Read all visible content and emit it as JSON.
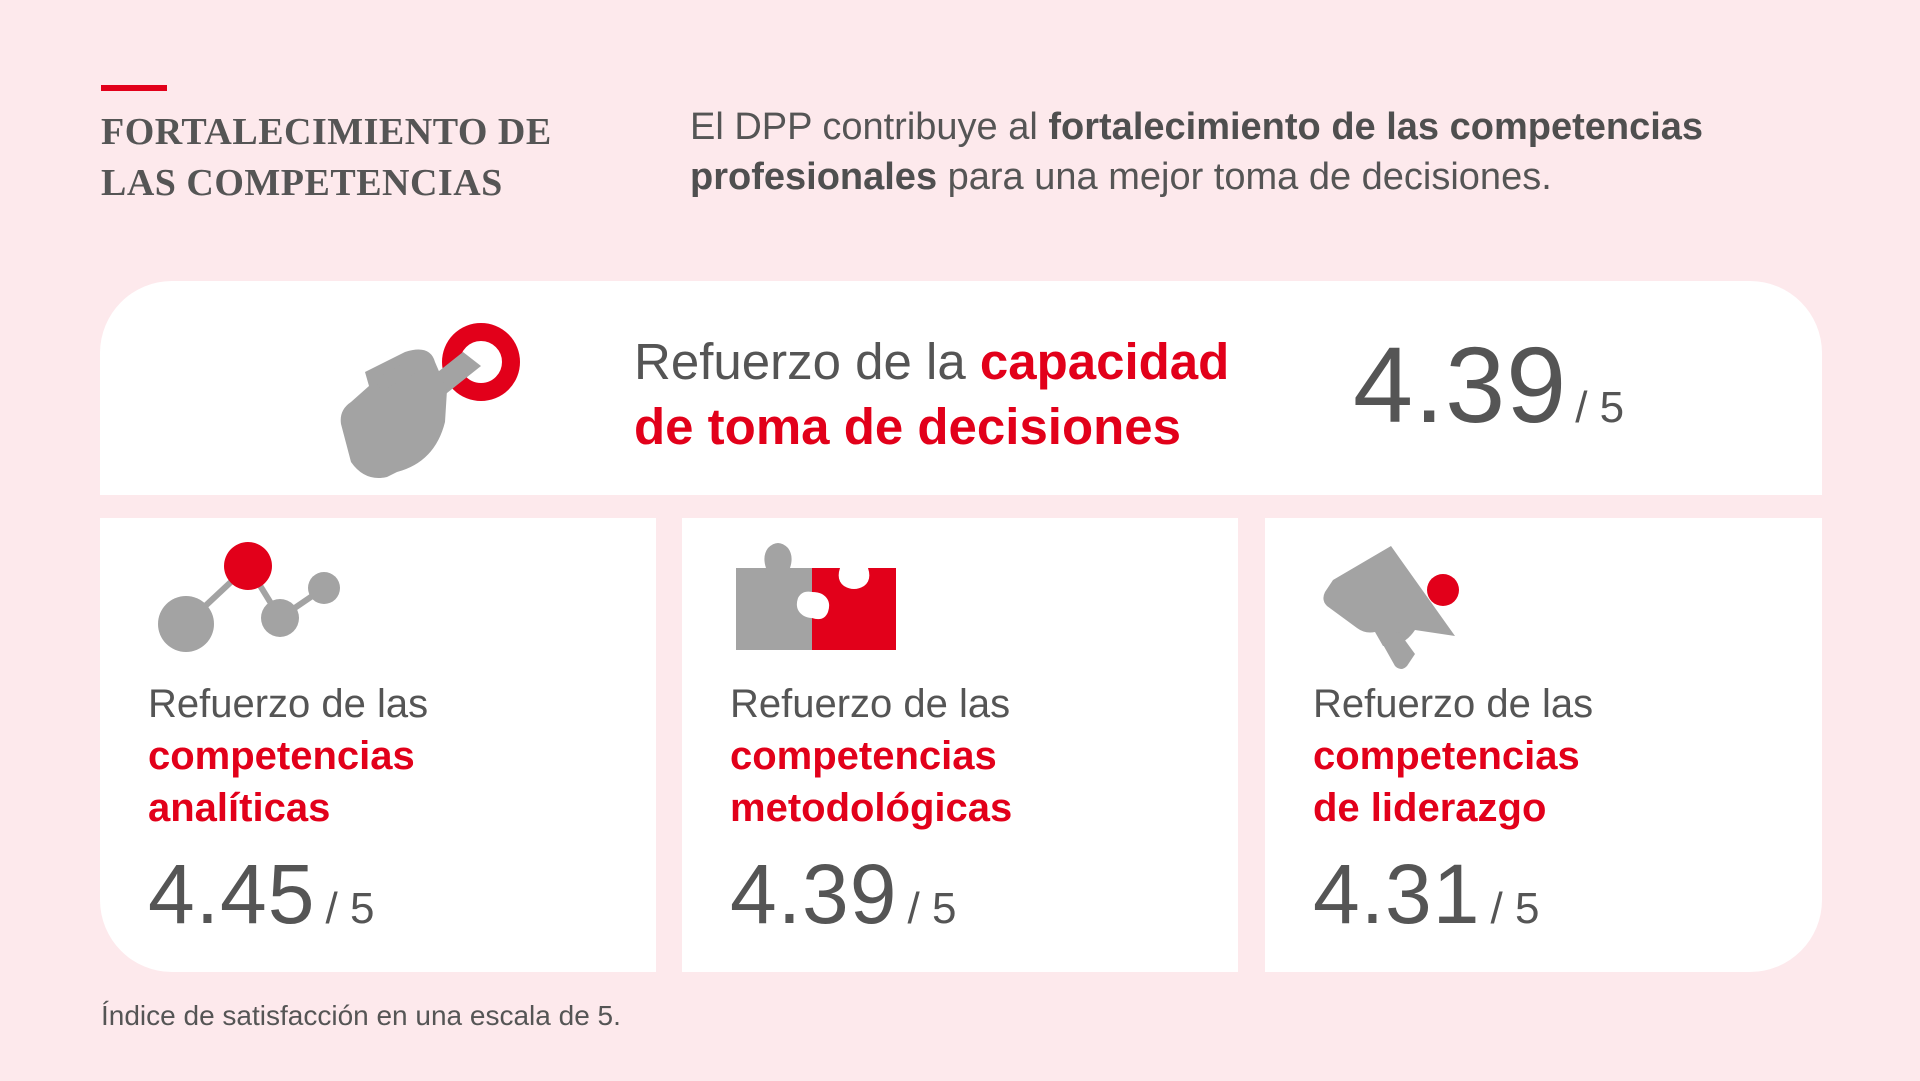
{
  "header": {
    "title_line1": "FORTALECIMIENTO DE",
    "title_line2": "LAS COMPETENCIAS",
    "intro_part1": "El DPP contribuye al ",
    "intro_bold": "fortalecimiento de las competencias profesionales",
    "intro_part2": " para una mejor toma de decisiones."
  },
  "top_card": {
    "icon": "hand-pointer-icon",
    "label_plain": "Refuerzo de la ",
    "label_red": "capacidad de toma de decisiones",
    "score": "4.39",
    "out_of": "/ 5"
  },
  "cards": [
    {
      "icon": "network-nodes-icon",
      "label_plain": "Refuerzo de las",
      "label_red_line1": "competencias",
      "label_red_line2": "analíticas",
      "score": "4.45",
      "out_of": "/ 5"
    },
    {
      "icon": "puzzle-pieces-icon",
      "label_plain": "Refuerzo de las",
      "label_red_line1": "competencias",
      "label_red_line2": "metodológicas",
      "score": "4.39",
      "out_of": "/ 5"
    },
    {
      "icon": "megaphone-icon",
      "label_plain": "Refuerzo de las",
      "label_red_line1": "competencias",
      "label_red_line2": "de liderazgo",
      "score": "4.31",
      "out_of": "/ 5"
    }
  ],
  "footnote": "Índice de satisfacción en una escala de 5.",
  "colors": {
    "accent": "#e2001a",
    "gray_icon": "#a3a3a3",
    "background": "#fde9ec",
    "text": "#555555"
  }
}
